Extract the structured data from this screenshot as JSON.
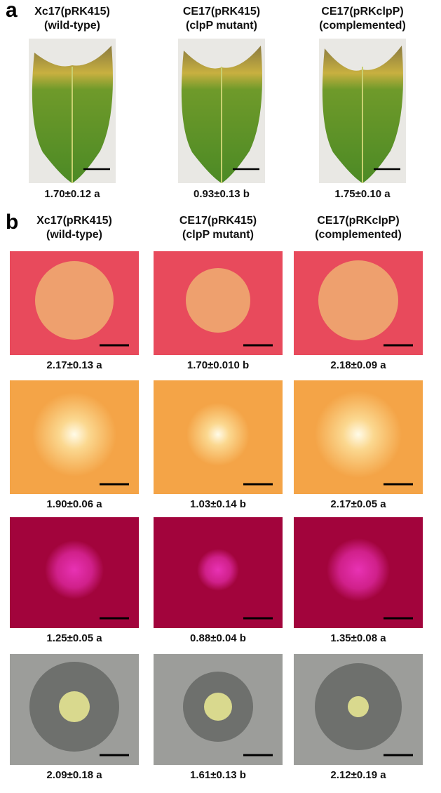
{
  "panel_a": {
    "label": "a",
    "columns": [
      {
        "title": "Xc17(pRK415)",
        "subtitle": "(wild-type)",
        "value": "1.70±0.12 a"
      },
      {
        "title": "CE17(pRK415)",
        "subtitle": "(clpP mutant)",
        "value": "0.93±0.13 b"
      },
      {
        "title": "CE17(pRKclpP)",
        "subtitle": "(complemented)",
        "value": "1.75±0.10 a"
      }
    ]
  },
  "panel_b": {
    "label": "b",
    "columns": [
      {
        "title": "Xc17(pRK415)",
        "subtitle": "(wild-type)"
      },
      {
        "title": "CE17(pRK415)",
        "subtitle": "(clpP mutant)"
      },
      {
        "title": "CE17(pRKclpP)",
        "subtitle": "(complemented)"
      }
    ],
    "rows": [
      [
        "2.17±0.13 a",
        "1.70±0.010 b",
        "2.18±0.09 a"
      ],
      [
        "1.90±0.06 a",
        "1.03±0.14 b",
        "2.17±0.05 a"
      ],
      [
        "1.25±0.05 a",
        "0.88±0.04 b",
        "1.35±0.08 a"
      ],
      [
        "2.09±0.18 a",
        "1.61±0.13 b",
        "2.12±0.19 a"
      ]
    ]
  }
}
